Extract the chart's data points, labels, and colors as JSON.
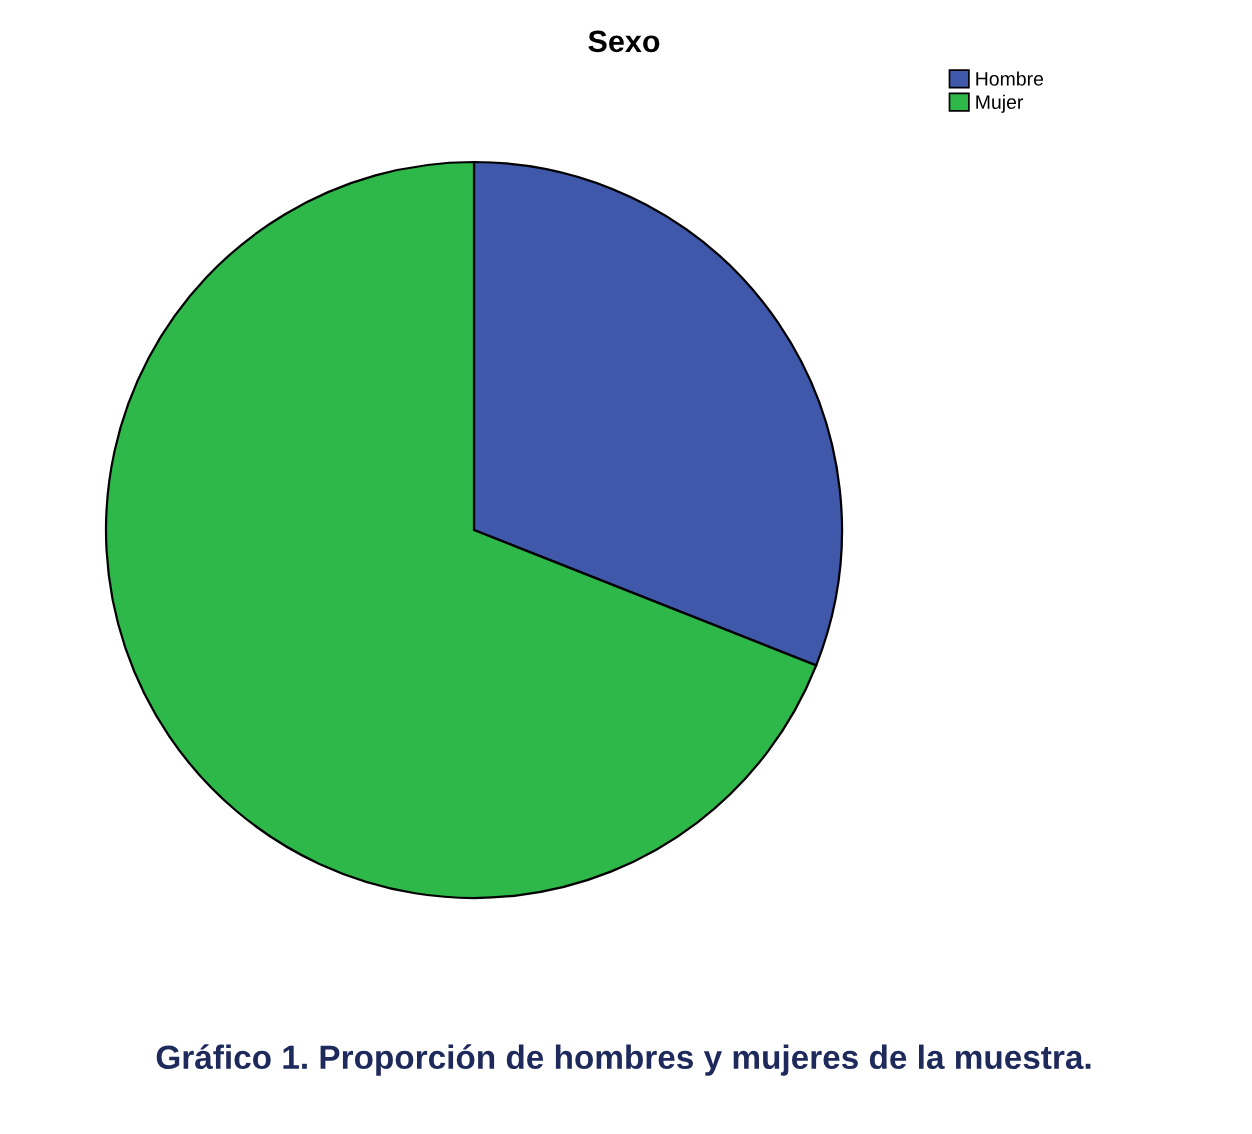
{
  "chart_data": {
    "type": "pie",
    "title": "Sexo",
    "categories": [
      "Hombre",
      "Mujer"
    ],
    "values": [
      31,
      69
    ],
    "colors": [
      "#3f58a9",
      "#2eb84a"
    ],
    "legend": "top right",
    "annotations": [
      "Gráfico 1. Proporción de hombres y mujeres de la muestra."
    ]
  }
}
